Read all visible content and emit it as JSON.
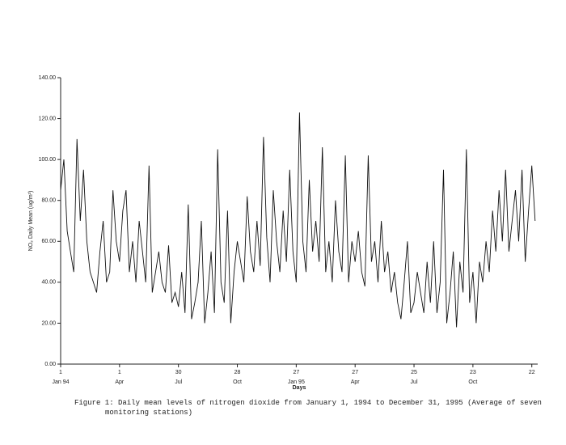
{
  "chart_data": {
    "type": "line",
    "ylabel": "NO₂ Daily Mean (ug/m³)",
    "xlabel": "Days",
    "caption": "Figure 1: Daily mean levels of nitrogen dioxide from January 1, 1994 to December 31, 1995 (Average of seven monitoring stations)",
    "xlim": [
      1,
      730
    ],
    "xticks": [
      {
        "value": 1,
        "label": "1",
        "sublabel": "Jan 94"
      },
      {
        "value": 91,
        "label": "1",
        "sublabel": "Apr"
      },
      {
        "value": 181,
        "label": "30",
        "sublabel": "Jul"
      },
      {
        "value": 271,
        "label": "28",
        "sublabel": "Oct"
      },
      {
        "value": 361,
        "label": "27",
        "sublabel": "Jan 95"
      },
      {
        "value": 451,
        "label": "27",
        "sublabel": "Apr"
      },
      {
        "value": 541,
        "label": "25",
        "sublabel": "Jul"
      },
      {
        "value": 631,
        "label": "23",
        "sublabel": "Oct"
      },
      {
        "value": 721,
        "label": "22"
      }
    ],
    "ylim": [
      0,
      140
    ],
    "yticks": [
      {
        "value": 0,
        "label": "0.00"
      },
      {
        "value": 20,
        "label": "20.00"
      },
      {
        "value": 40,
        "label": "40.00"
      },
      {
        "value": 60,
        "label": "60.00"
      },
      {
        "value": 80,
        "label": "80.00"
      },
      {
        "value": 100,
        "label": "100.00"
      },
      {
        "value": 120,
        "label": "120.00"
      },
      {
        "value": 140,
        "label": "140.00"
      }
    ],
    "x": [
      1,
      6,
      11,
      16,
      21,
      26,
      31,
      36,
      41,
      46,
      51,
      56,
      61,
      66,
      71,
      76,
      81,
      86,
      91,
      96,
      101,
      106,
      111,
      116,
      121,
      126,
      131,
      136,
      141,
      146,
      151,
      156,
      161,
      166,
      171,
      176,
      181,
      186,
      191,
      196,
      201,
      206,
      211,
      216,
      221,
      226,
      231,
      236,
      241,
      246,
      251,
      256,
      261,
      266,
      271,
      276,
      281,
      286,
      291,
      296,
      301,
      306,
      311,
      316,
      321,
      326,
      331,
      336,
      341,
      346,
      351,
      356,
      361,
      366,
      371,
      376,
      381,
      386,
      391,
      396,
      401,
      406,
      411,
      416,
      421,
      426,
      431,
      436,
      441,
      446,
      451,
      456,
      461,
      466,
      471,
      476,
      481,
      486,
      491,
      496,
      501,
      506,
      511,
      516,
      521,
      526,
      531,
      536,
      541,
      546,
      551,
      556,
      561,
      566,
      571,
      576,
      581,
      586,
      591,
      596,
      601,
      606,
      611,
      616,
      621,
      626,
      631,
      636,
      641,
      646,
      651,
      656,
      661,
      666,
      671,
      676,
      681,
      686,
      691,
      696,
      701,
      706,
      711,
      716,
      721,
      726
    ],
    "series": [
      {
        "name": "NO2",
        "color": "#111111",
        "values": [
          85,
          100,
          65,
          55,
          45,
          110,
          70,
          95,
          60,
          45,
          40,
          35,
          55,
          70,
          40,
          45,
          85,
          60,
          50,
          75,
          85,
          45,
          60,
          40,
          70,
          55,
          40,
          97,
          35,
          45,
          55,
          40,
          35,
          58,
          30,
          35,
          28,
          45,
          25,
          78,
          22,
          30,
          40,
          70,
          20,
          35,
          55,
          25,
          105,
          40,
          30,
          75,
          20,
          45,
          60,
          50,
          40,
          82,
          55,
          45,
          70,
          48,
          111,
          62,
          40,
          85,
          60,
          45,
          75,
          50,
          95,
          55,
          40,
          123,
          60,
          45,
          90,
          55,
          70,
          50,
          106,
          45,
          60,
          40,
          80,
          55,
          45,
          102,
          40,
          60,
          50,
          65,
          45,
          38,
          102,
          50,
          60,
          40,
          70,
          45,
          55,
          35,
          45,
          30,
          22,
          40,
          60,
          25,
          30,
          45,
          35,
          25,
          50,
          30,
          60,
          25,
          40,
          95,
          20,
          35,
          55,
          18,
          50,
          35,
          105,
          30,
          45,
          20,
          50,
          40,
          60,
          45,
          75,
          55,
          85,
          60,
          95,
          55,
          70,
          85,
          60,
          95,
          50,
          75,
          97,
          70
        ]
      }
    ]
  }
}
